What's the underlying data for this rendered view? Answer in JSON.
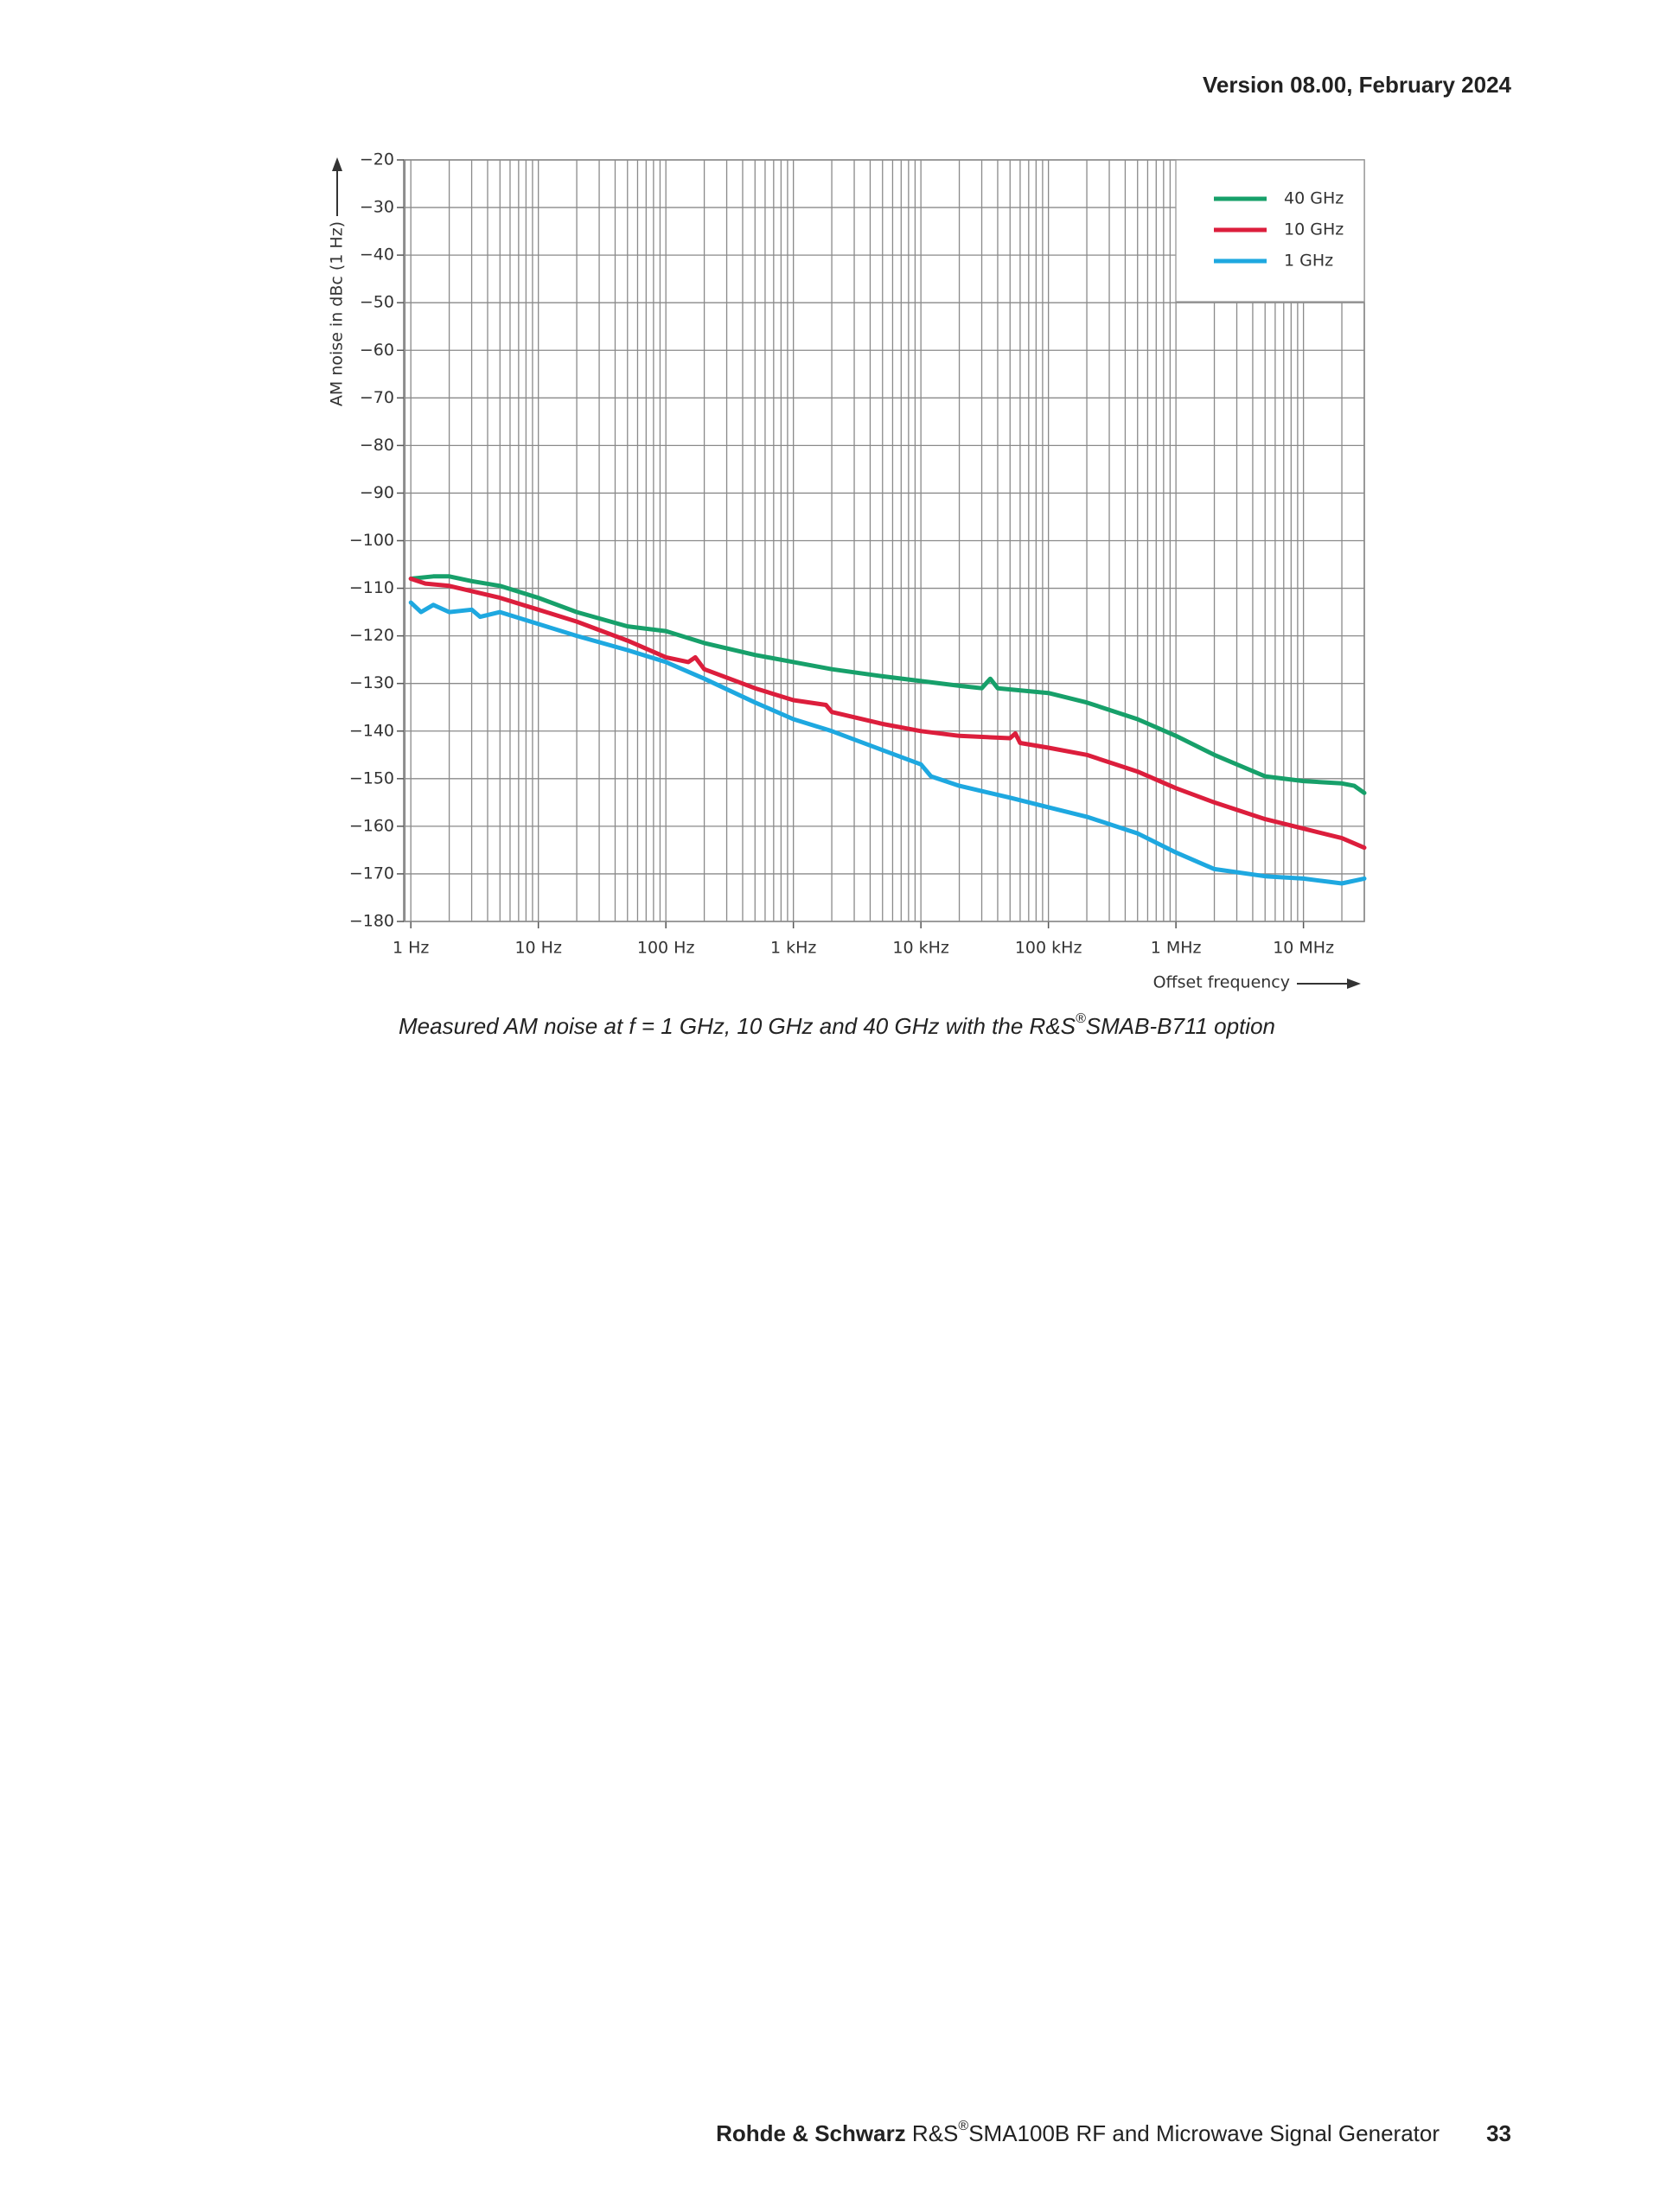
{
  "header": {
    "version": "Version 08.00, February 2024"
  },
  "caption": {
    "text_before": "Measured AM noise at f = 1 GHz, 10 GHz and 40 GHz with the R&S",
    "superscript": "®",
    "text_after": "SMAB-B711 option"
  },
  "footer": {
    "company": "Rohde & Schwarz",
    "brand": "R&S",
    "superscript": "®",
    "product": "SMA100B RF and Microwave Signal Generator",
    "page": "33"
  },
  "chart_data": {
    "type": "line",
    "y_label": "AM noise in dBc (1 Hz)",
    "x_label": "Offset frequency",
    "xscale": "log",
    "grid": true,
    "minor_grid": true,
    "legend": "top-right",
    "xlim": [
      0.88,
      30000000
    ],
    "ylim": [
      -180,
      -20
    ],
    "xticks": [
      {
        "value": 1,
        "label": "1 Hz"
      },
      {
        "value": 10,
        "label": "10 Hz"
      },
      {
        "value": 100,
        "label": "100 Hz"
      },
      {
        "value": 1000,
        "label": "1 kHz"
      },
      {
        "value": 10000,
        "label": "10 kHz"
      },
      {
        "value": 100000,
        "label": "100 kHz"
      },
      {
        "value": 1000000,
        "label": "1 MHz"
      },
      {
        "value": 10000000,
        "label": "10 MHz"
      }
    ],
    "yticks": [
      {
        "value": -20,
        "label": "−20"
      },
      {
        "value": -30,
        "label": "−30"
      },
      {
        "value": -40,
        "label": "−40"
      },
      {
        "value": -50,
        "label": "−50"
      },
      {
        "value": -60,
        "label": "−60"
      },
      {
        "value": -70,
        "label": "−70"
      },
      {
        "value": -80,
        "label": "−80"
      },
      {
        "value": -90,
        "label": "−90"
      },
      {
        "value": -100,
        "label": "−100"
      },
      {
        "value": -110,
        "label": "−110"
      },
      {
        "value": -120,
        "label": "−120"
      },
      {
        "value": -130,
        "label": "−130"
      },
      {
        "value": -140,
        "label": "−140"
      },
      {
        "value": -150,
        "label": "−150"
      },
      {
        "value": -160,
        "label": "−160"
      },
      {
        "value": -170,
        "label": "−170"
      },
      {
        "value": -180,
        "label": "−180"
      }
    ],
    "series": [
      {
        "name": "40 GHz",
        "color": "#17a06a",
        "x": [
          1,
          1.5,
          2,
          3,
          5,
          10,
          20,
          50,
          100,
          200,
          500,
          1000,
          2000,
          5000,
          10000,
          20000,
          30000,
          35000,
          40000,
          100000,
          200000,
          500000,
          1000000,
          2000000,
          5000000,
          10000000,
          20000000,
          25000000,
          30000000
        ],
        "values": [
          -108,
          -107.5,
          -107.5,
          -108.5,
          -109.5,
          -112,
          -115,
          -118,
          -119,
          -121.5,
          -124,
          -125.5,
          -127,
          -128.5,
          -129.5,
          -130.5,
          -131,
          -129,
          -131,
          -132,
          -134,
          -137.5,
          -141,
          -145,
          -149.5,
          -150.5,
          -151,
          -151.5,
          -153
        ]
      },
      {
        "name": "10 GHz",
        "color": "#dc1e3c",
        "x": [
          1,
          1.3,
          2,
          5,
          10,
          20,
          50,
          100,
          150,
          170,
          200,
          500,
          1000,
          1800,
          2000,
          5000,
          10000,
          20000,
          50000,
          55000,
          60000,
          100000,
          200000,
          500000,
          1000000,
          2000000,
          5000000,
          10000000,
          20000000,
          30000000
        ],
        "values": [
          -108,
          -109,
          -109.5,
          -112,
          -114.5,
          -117,
          -121,
          -124.5,
          -125.5,
          -124.5,
          -127,
          -131,
          -133.5,
          -134.5,
          -136,
          -138.5,
          -140,
          -141,
          -141.5,
          -140.5,
          -142.5,
          -143.5,
          -145,
          -148.5,
          -152,
          -155,
          -158.5,
          -160.5,
          -162.5,
          -164.5
        ]
      },
      {
        "name": "1 GHz",
        "color": "#1ea8e0",
        "x": [
          1,
          1.2,
          1.5,
          2,
          3,
          3.5,
          5,
          10,
          20,
          50,
          100,
          200,
          500,
          1000,
          2000,
          5000,
          10000,
          12000,
          20000,
          50000,
          100000,
          200000,
          500000,
          1000000,
          2000000,
          5000000,
          10000000,
          20000000,
          30000000
        ],
        "values": [
          -113,
          -115,
          -113.5,
          -115,
          -114.5,
          -116,
          -115,
          -117.5,
          -120,
          -123,
          -125.5,
          -129,
          -134,
          -137.5,
          -140,
          -144,
          -147,
          -149.5,
          -151.5,
          -154,
          -156,
          -158,
          -161.5,
          -165.5,
          -169,
          -170.5,
          -171,
          -172,
          -171
        ]
      }
    ]
  }
}
